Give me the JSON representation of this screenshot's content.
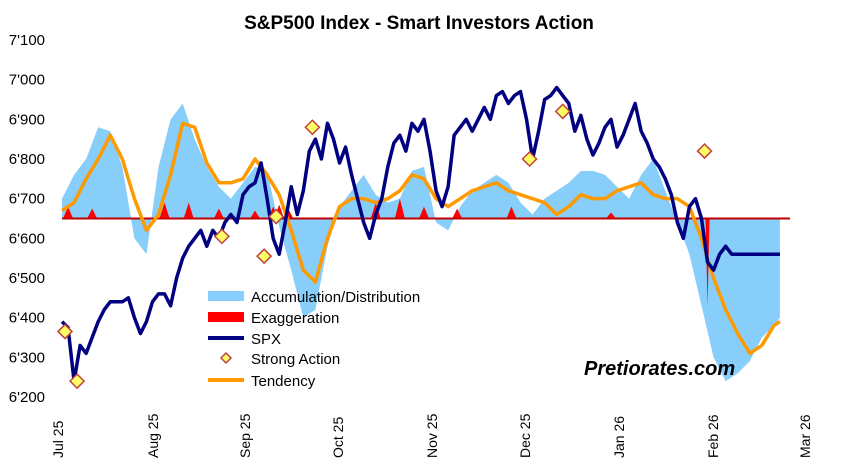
{
  "chart_data": {
    "type": "line",
    "title": "S&P500 Index - Smart Investors Action",
    "y_ticks": [
      "7'100",
      "7'000",
      "6'900",
      "6'800",
      "6'700",
      "6'600",
      "6'500",
      "6'400",
      "6'300",
      "6'200"
    ],
    "ylim": [
      6200,
      7100
    ],
    "x_ticks": [
      "Jul 25",
      "Aug 25",
      "Sep 25",
      "Oct 25",
      "Nov 25",
      "Dec 25",
      "Jan 26",
      "Feb 26",
      "Mar 26"
    ],
    "x_range": [
      0,
      242
    ],
    "baseline": 6650,
    "legend_position": "bottom-left",
    "legend": [
      {
        "label": "Accumulation/Distribution",
        "kind": "area"
      },
      {
        "label": "Exaggeration",
        "kind": "bar"
      },
      {
        "label": "SPX",
        "kind": "line"
      },
      {
        "label": "Strong Action",
        "kind": "marker"
      },
      {
        "label": "Tendency",
        "kind": "line"
      }
    ],
    "watermark": "Pretiorates.com",
    "colors": {
      "accumulation": "#87cefa",
      "exaggeration": "#ff0000",
      "spx": "#000080",
      "marker_fill": "#ffff66",
      "marker_edge": "#c04040",
      "tendency": "#ff9900",
      "baseline": "#c00000"
    },
    "series": [
      {
        "name": "SPX",
        "x": [
          0,
          2,
          4,
          6,
          8,
          10,
          12,
          14,
          16,
          18,
          20,
          22,
          24,
          26,
          28,
          30,
          32,
          34,
          36,
          38,
          40,
          42,
          44,
          46,
          48,
          50,
          52,
          54,
          56,
          58,
          60,
          62,
          64,
          66,
          68,
          70,
          72,
          74,
          76,
          78,
          80,
          82,
          84,
          86,
          88,
          90,
          92,
          94,
          96,
          98,
          100,
          102,
          104,
          106,
          108,
          110,
          112,
          114,
          116,
          118,
          120,
          122,
          124,
          126,
          128,
          130,
          132,
          134,
          136,
          138,
          140,
          142,
          144,
          146,
          148,
          150,
          152,
          154,
          156,
          158,
          160,
          162,
          164,
          166,
          168,
          170,
          172,
          174,
          176,
          178,
          180,
          182,
          184,
          186,
          188,
          190,
          192,
          194,
          196,
          198,
          200,
          202,
          204,
          206,
          208,
          210,
          212,
          214,
          216,
          218,
          220,
          222,
          224,
          226,
          228,
          230,
          232,
          234,
          236,
          238
        ],
        "values": [
          6390,
          6375,
          6240,
          6330,
          6310,
          6350,
          6390,
          6420,
          6440,
          6440,
          6440,
          6450,
          6400,
          6360,
          6390,
          6440,
          6460,
          6460,
          6430,
          6500,
          6550,
          6580,
          6600,
          6620,
          6580,
          6620,
          6600,
          6640,
          6660,
          6640,
          6710,
          6730,
          6740,
          6790,
          6700,
          6600,
          6560,
          6640,
          6730,
          6660,
          6720,
          6820,
          6850,
          6800,
          6890,
          6850,
          6790,
          6830,
          6760,
          6700,
          6640,
          6600,
          6660,
          6700,
          6780,
          6840,
          6860,
          6820,
          6890,
          6870,
          6900,
          6820,
          6720,
          6680,
          6730,
          6860,
          6880,
          6900,
          6870,
          6900,
          6930,
          6900,
          6960,
          6970,
          6940,
          6960,
          6970,
          6900,
          6800,
          6870,
          6950,
          6960,
          6980,
          6960,
          6940,
          6870,
          6910,
          6850,
          6810,
          6840,
          6880,
          6900,
          6830,
          6860,
          6900,
          6940,
          6870,
          6840,
          6800,
          6780,
          6750,
          6710,
          6640,
          6600,
          6680,
          6700,
          6650,
          6540,
          6520,
          6560,
          6580,
          6560,
          6560,
          6560,
          6560,
          6560,
          6560,
          6560,
          6560,
          6560
        ]
      },
      {
        "name": "Tendency",
        "x": [
          0,
          4,
          8,
          12,
          16,
          20,
          24,
          28,
          32,
          36,
          40,
          44,
          48,
          52,
          56,
          60,
          64,
          68,
          72,
          76,
          80,
          84,
          88,
          92,
          96,
          100,
          104,
          108,
          112,
          116,
          120,
          124,
          128,
          132,
          136,
          140,
          144,
          148,
          152,
          156,
          160,
          164,
          168,
          172,
          176,
          180,
          184,
          188,
          192,
          196,
          200,
          204,
          208,
          212,
          216,
          220,
          224,
          228,
          232,
          236,
          238
        ],
        "values": [
          6670,
          6690,
          6750,
          6800,
          6860,
          6800,
          6700,
          6620,
          6660,
          6760,
          6890,
          6880,
          6790,
          6740,
          6740,
          6750,
          6800,
          6760,
          6710,
          6620,
          6520,
          6490,
          6600,
          6680,
          6700,
          6700,
          6690,
          6700,
          6720,
          6760,
          6750,
          6700,
          6680,
          6700,
          6720,
          6730,
          6740,
          6720,
          6710,
          6700,
          6690,
          6660,
          6680,
          6710,
          6700,
          6700,
          6720,
          6730,
          6740,
          6710,
          6700,
          6700,
          6680,
          6600,
          6500,
          6420,
          6360,
          6310,
          6330,
          6380,
          6390
        ]
      },
      {
        "name": "Accumulation/Distribution",
        "x": [
          0,
          4,
          8,
          12,
          16,
          20,
          24,
          28,
          32,
          36,
          40,
          44,
          48,
          52,
          56,
          60,
          64,
          68,
          72,
          76,
          80,
          84,
          88,
          92,
          96,
          100,
          104,
          108,
          112,
          116,
          120,
          124,
          128,
          132,
          136,
          140,
          144,
          148,
          152,
          156,
          160,
          164,
          168,
          172,
          176,
          180,
          184,
          188,
          192,
          196,
          200,
          204,
          208,
          212,
          216,
          220,
          224,
          228,
          232,
          236,
          238
        ],
        "values": [
          6700,
          6760,
          6800,
          6880,
          6870,
          6780,
          6600,
          6560,
          6780,
          6900,
          6940,
          6850,
          6780,
          6730,
          6700,
          6740,
          6780,
          6770,
          6630,
          6520,
          6400,
          6420,
          6580,
          6680,
          6720,
          6760,
          6710,
          6690,
          6700,
          6770,
          6780,
          6640,
          6620,
          6680,
          6720,
          6740,
          6760,
          6740,
          6690,
          6660,
          6700,
          6720,
          6740,
          6770,
          6770,
          6760,
          6730,
          6700,
          6760,
          6800,
          6720,
          6640,
          6560,
          6430,
          6300,
          6240,
          6260,
          6290,
          6350,
          6380,
          6400
        ]
      },
      {
        "name": "Exaggeration",
        "x": [
          2,
          10,
          34,
          42,
          52,
          64,
          70,
          72,
          75,
          104,
          112,
          120,
          131,
          149,
          182,
          214
        ],
        "values": [
          6680,
          6675,
          6690,
          6690,
          6675,
          6670,
          6680,
          6685,
          6675,
          6690,
          6700,
          6680,
          6675,
          6680,
          6665,
          6430
        ]
      },
      {
        "name": "Strong Action",
        "x": [
          1,
          5,
          53,
          67,
          71,
          83,
          155,
          166,
          213
        ],
        "values": [
          6365,
          6240,
          6605,
          6555,
          6655,
          6880,
          6800,
          6920,
          6820
        ]
      }
    ]
  }
}
